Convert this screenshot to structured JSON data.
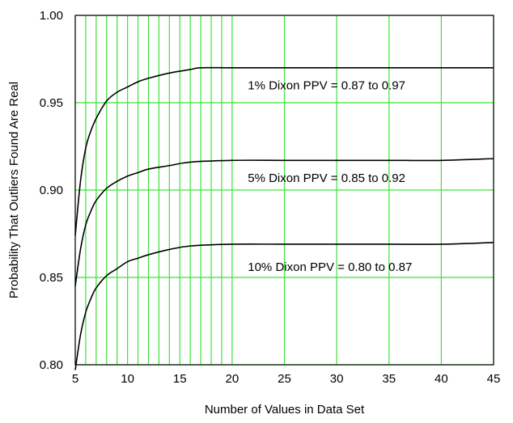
{
  "chart_data": {
    "type": "line",
    "xlabel": "Number of Values in Data Set",
    "ylabel": "Probability That Outliers Found Are Real",
    "xlim": [
      5,
      45
    ],
    "ylim": [
      0.8,
      1.0
    ],
    "x_ticks": [
      5,
      10,
      15,
      20,
      25,
      30,
      35,
      40,
      45
    ],
    "x_tick_labels": [
      "5",
      "10",
      "15",
      "20",
      "25",
      "30",
      "35",
      "40",
      "45"
    ],
    "y_ticks": [
      0.8,
      0.85,
      0.9,
      0.95,
      1.0
    ],
    "y_tick_labels": [
      "0.80",
      "0.85",
      "0.90",
      "0.95",
      "1.00"
    ],
    "grid": true,
    "grid_color": "#3be33b",
    "x_minor_grid": [
      6,
      7,
      8,
      9,
      11,
      12,
      13,
      14,
      16,
      17,
      18,
      19
    ],
    "series": [
      {
        "x": [
          5,
          5.5,
          6,
          6.5,
          7,
          8,
          9,
          10,
          11,
          12,
          14,
          16,
          17,
          20,
          25,
          30,
          35,
          40,
          45
        ],
        "y": [
          0.874,
          0.905,
          0.924,
          0.934,
          0.941,
          0.951,
          0.956,
          0.959,
          0.962,
          0.964,
          0.967,
          0.969,
          0.97,
          0.97,
          0.97,
          0.97,
          0.97,
          0.97,
          0.97
        ]
      },
      {
        "x": [
          5,
          5.5,
          6,
          6.5,
          7,
          8,
          9,
          10,
          11,
          12,
          14,
          16,
          20,
          25,
          30,
          35,
          40,
          45
        ],
        "y": [
          0.845,
          0.866,
          0.88,
          0.888,
          0.894,
          0.901,
          0.905,
          0.908,
          0.91,
          0.912,
          0.914,
          0.916,
          0.917,
          0.917,
          0.917,
          0.917,
          0.917,
          0.918
        ]
      },
      {
        "x": [
          5,
          5.5,
          6,
          6.5,
          7,
          8,
          9,
          10,
          11,
          12,
          14,
          16,
          20,
          25,
          30,
          35,
          40,
          45
        ],
        "y": [
          0.797,
          0.817,
          0.83,
          0.838,
          0.844,
          0.851,
          0.855,
          0.859,
          0.861,
          0.863,
          0.866,
          0.868,
          0.869,
          0.869,
          0.869,
          0.869,
          0.869,
          0.87
        ]
      }
    ],
    "annotations": [
      {
        "text": "1% Dixon PPV = 0.87 to 0.97",
        "x": 21.5,
        "y": 0.96
      },
      {
        "text": "5% Dixon  PPV = 0.85 to 0.92",
        "x": 21.5,
        "y": 0.907
      },
      {
        "text": "10% Dixon  PPV = 0.80 to 0.87",
        "x": 21.5,
        "y": 0.856
      }
    ]
  }
}
